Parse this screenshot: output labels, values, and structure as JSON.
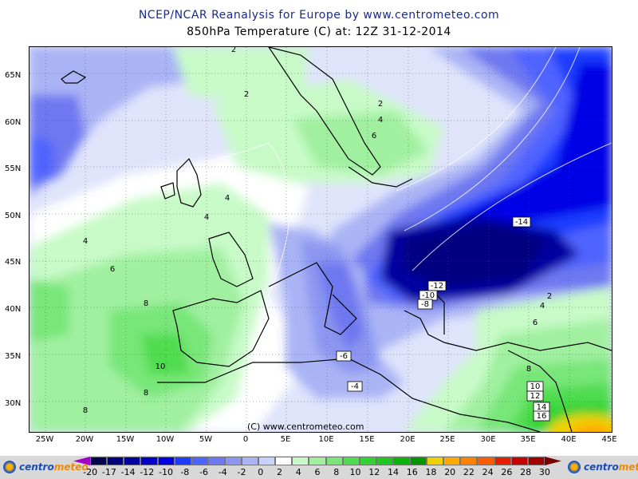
{
  "header": {
    "title": "NCEP/NCAR Reanalysis for Europe by www.centrometeo.com",
    "subtitle": "850hPa Temperature (C) at: 12Z 31-12-2014"
  },
  "map": {
    "lat_labels": [
      "65N",
      "60N",
      "55N",
      "50N",
      "45N",
      "40N",
      "35N",
      "30N"
    ],
    "lon_labels": [
      "25W",
      "20W",
      "15W",
      "10W",
      "5W",
      "0",
      "5E",
      "10E",
      "15E",
      "20E",
      "25E",
      "30E",
      "35E",
      "40E",
      "45E"
    ],
    "copyright": "(C) www.centrometeo.com",
    "contour_labels": [
      {
        "text": "2",
        "boxed": false
      },
      {
        "text": "2",
        "boxed": false
      },
      {
        "text": "2",
        "boxed": false
      },
      {
        "text": "4",
        "boxed": false
      },
      {
        "text": "6",
        "boxed": false
      },
      {
        "text": "4",
        "boxed": false
      },
      {
        "text": "4",
        "boxed": false
      },
      {
        "text": "4",
        "boxed": false
      },
      {
        "text": "6",
        "boxed": false
      },
      {
        "text": "8",
        "boxed": false
      },
      {
        "text": "10",
        "boxed": false
      },
      {
        "text": "8",
        "boxed": false
      },
      {
        "text": "8",
        "boxed": false
      },
      {
        "text": "-14",
        "boxed": true
      },
      {
        "text": "-12",
        "boxed": true
      },
      {
        "text": "-10",
        "boxed": true
      },
      {
        "text": "-8",
        "boxed": true
      },
      {
        "text": "-6",
        "boxed": true
      },
      {
        "text": "-4",
        "boxed": true
      },
      {
        "text": "2",
        "boxed": false
      },
      {
        "text": "4",
        "boxed": false
      },
      {
        "text": "6",
        "boxed": false
      },
      {
        "text": "8",
        "boxed": false
      },
      {
        "text": "10",
        "boxed": true
      },
      {
        "text": "12",
        "boxed": true
      },
      {
        "text": "14",
        "boxed": true
      },
      {
        "text": "16",
        "boxed": true
      }
    ]
  },
  "colorbar": {
    "logo_left_a": "centro",
    "logo_left_b": "meteo",
    "logo_right_a": "centro",
    "logo_right_b": "meteo",
    "swatches": [
      "#a000c8",
      "#000050",
      "#000080",
      "#0000a0",
      "#0000c8",
      "#0000e6",
      "#1e3cff",
      "#4f64ff",
      "#6e78f0",
      "#8c96f0",
      "#aab4f5",
      "#c8d2fa",
      "#ffffff",
      "#c8fac8",
      "#a0f0a0",
      "#78e678",
      "#50dc50",
      "#32d232",
      "#1ec81e",
      "#0ab40a",
      "#009600",
      "#f0d200",
      "#ffaa00",
      "#ff8200",
      "#ff5a00",
      "#e61e00",
      "#c80000",
      "#a00000",
      "#780000"
    ],
    "tick_labels": [
      "-20",
      "-17",
      "-14",
      "-12",
      "-10",
      "-8",
      "-6",
      "-4",
      "-2",
      "0",
      "2",
      "4",
      "6",
      "8",
      "10",
      "12",
      "14",
      "16",
      "18",
      "20",
      "22",
      "24",
      "26",
      "28",
      "30"
    ]
  }
}
